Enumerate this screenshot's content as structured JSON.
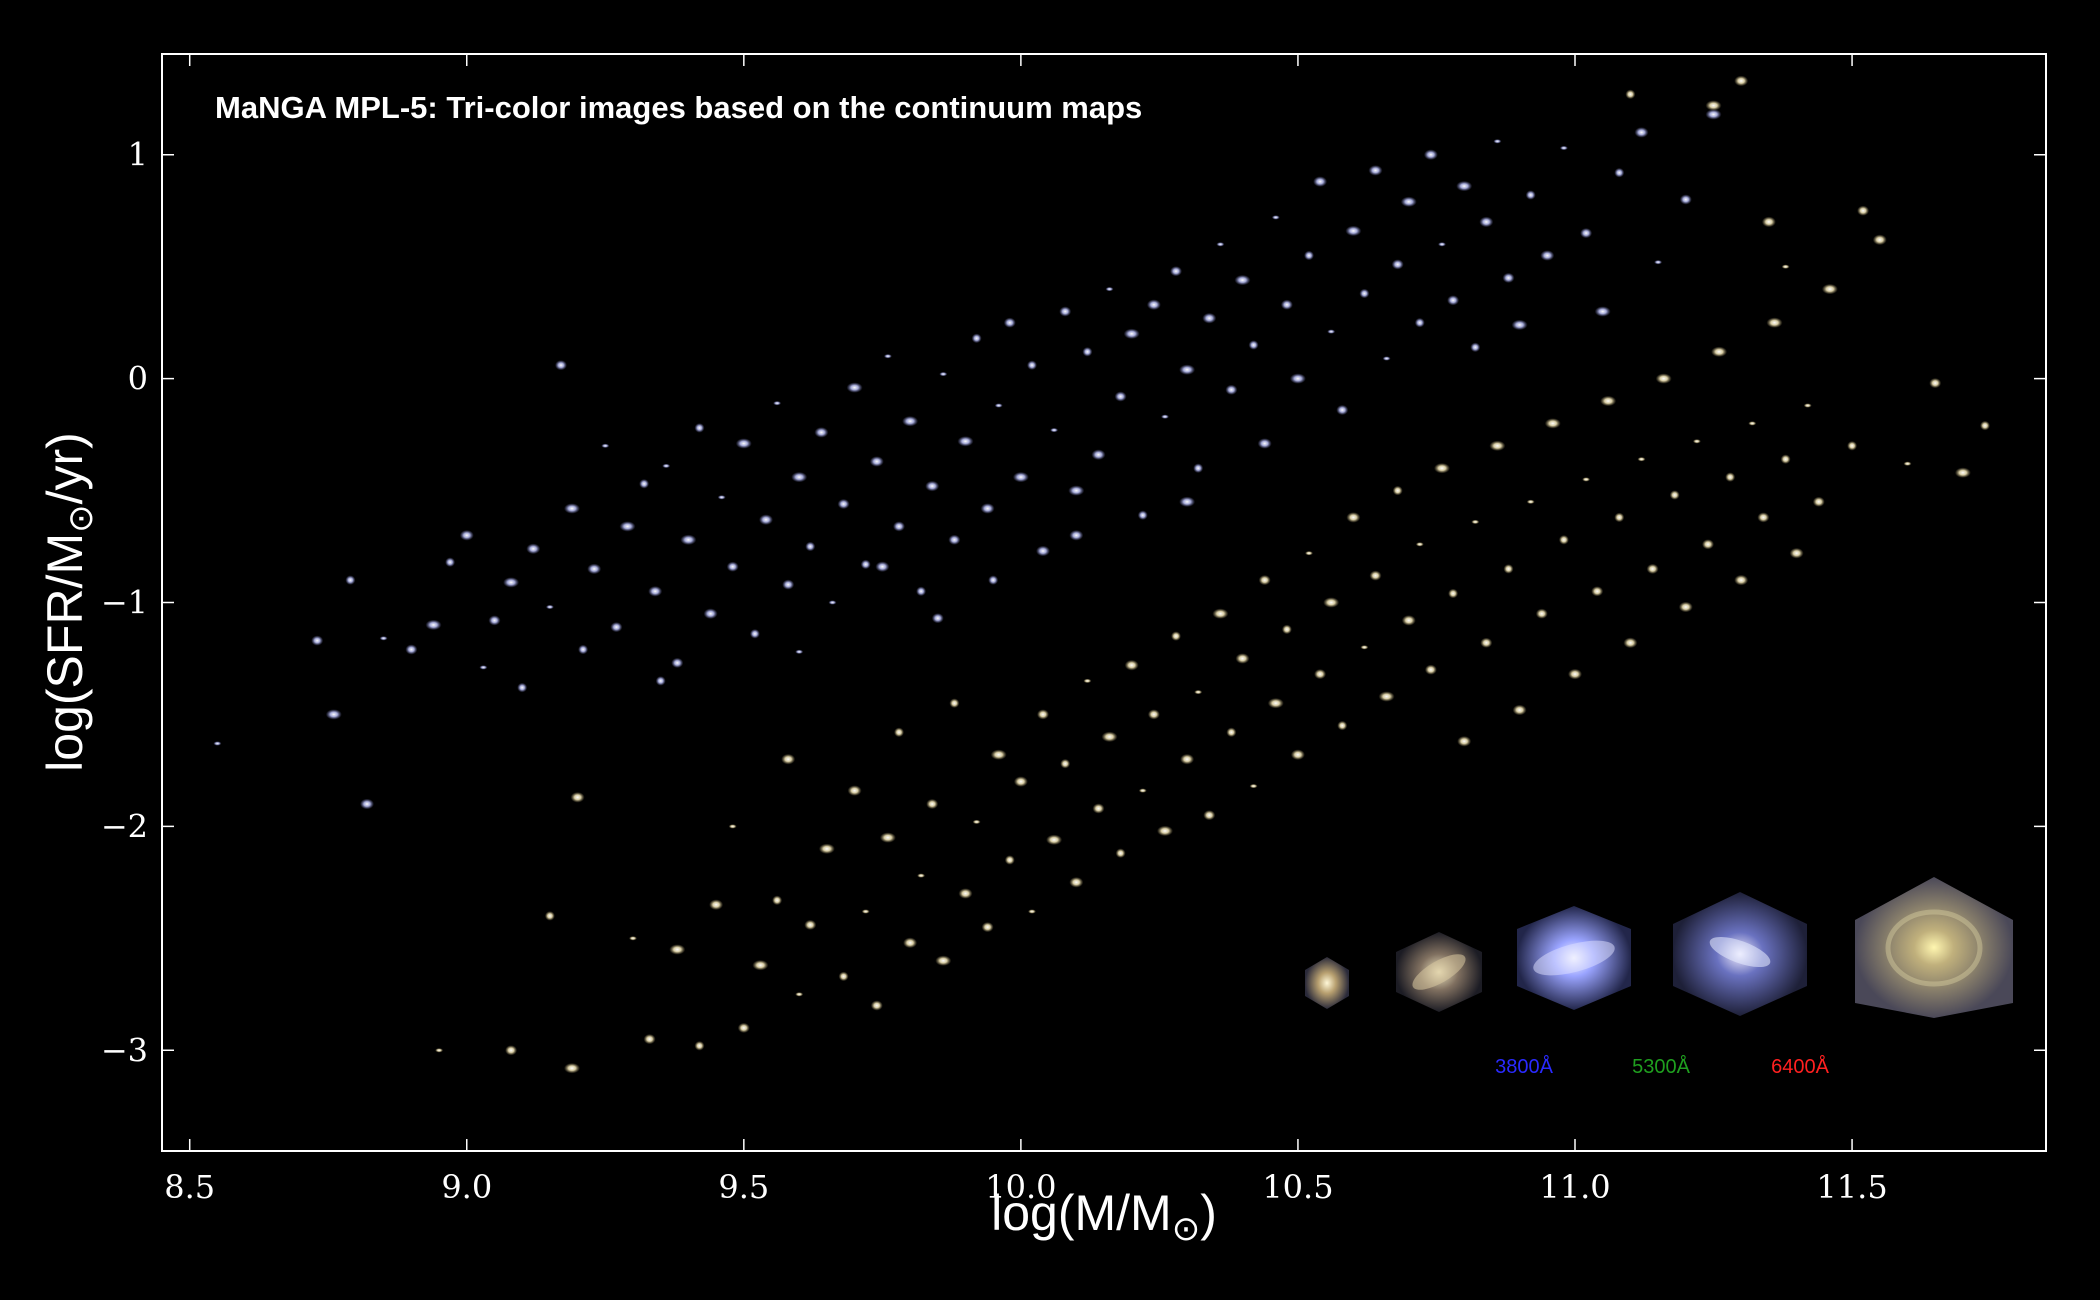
{
  "chart_data": {
    "type": "scatter",
    "title": "MaNGA MPL-5: Tri-color images based on the continuum maps",
    "xlabel_main": "log(M/M",
    "xlabel_sun": "⊙",
    "xlabel_end": ")",
    "ylabel_main": "log(SFR/M",
    "ylabel_sun": "⊙",
    "ylabel_end": "/yr)",
    "xlim": [
      8.45,
      11.85
    ],
    "ylim": [
      -3.45,
      1.45
    ],
    "x_ticks": [
      8.5,
      9.0,
      9.5,
      10.0,
      10.5,
      11.0,
      11.5
    ],
    "x_tick_labels": [
      "8.5",
      "9.0",
      "9.5",
      "10.0",
      "10.5",
      "11.0",
      "11.5"
    ],
    "y_ticks": [
      1,
      0,
      -1,
      -2,
      -3
    ],
    "y_tick_labels": [
      "1",
      "0",
      "−1",
      "−2",
      "−3"
    ],
    "grid": false,
    "colors": {
      "background": "#000000",
      "axes": "#ffffff",
      "star_forming": "#aab0e0",
      "quiescent": "#e6dcae"
    },
    "series": [
      {
        "points": [
          [
            8.55,
            -1.63
          ],
          [
            8.73,
            -1.17
          ],
          [
            8.76,
            -1.5
          ],
          [
            8.79,
            -0.9
          ],
          [
            8.82,
            -1.9
          ],
          [
            8.85,
            -1.16
          ],
          [
            8.9,
            -1.21
          ],
          [
            8.94,
            -1.1
          ],
          [
            8.97,
            -0.82
          ],
          [
            9.0,
            -0.7
          ],
          [
            9.03,
            -1.29
          ],
          [
            9.05,
            -1.08
          ],
          [
            9.08,
            -0.91
          ],
          [
            9.1,
            -1.38
          ],
          [
            9.12,
            -0.76
          ],
          [
            9.15,
            -1.02
          ],
          [
            9.17,
            0.06
          ],
          [
            9.19,
            -0.58
          ],
          [
            9.21,
            -1.21
          ],
          [
            9.23,
            -0.85
          ],
          [
            9.25,
            -0.3
          ],
          [
            9.27,
            -1.11
          ],
          [
            9.29,
            -0.66
          ],
          [
            9.32,
            -0.47
          ],
          [
            9.34,
            -0.95
          ],
          [
            9.36,
            -0.39
          ],
          [
            9.38,
            -1.27
          ],
          [
            9.4,
            -0.72
          ],
          [
            9.42,
            -0.22
          ],
          [
            9.44,
            -1.05
          ],
          [
            9.46,
            -0.53
          ],
          [
            9.48,
            -0.84
          ],
          [
            9.5,
            -0.29
          ],
          [
            9.52,
            -1.14
          ],
          [
            9.54,
            -0.63
          ],
          [
            9.56,
            -0.11
          ],
          [
            9.58,
            -0.92
          ],
          [
            9.6,
            -0.44
          ],
          [
            9.62,
            -0.75
          ],
          [
            9.64,
            -0.24
          ],
          [
            9.66,
            -1.0
          ],
          [
            9.68,
            -0.56
          ],
          [
            9.7,
            -0.04
          ],
          [
            9.72,
            -0.83
          ],
          [
            9.74,
            -0.37
          ],
          [
            9.76,
            0.1
          ],
          [
            9.78,
            -0.66
          ],
          [
            9.8,
            -0.19
          ],
          [
            9.82,
            -0.95
          ],
          [
            9.84,
            -0.48
          ],
          [
            9.86,
            0.02
          ],
          [
            9.88,
            -0.72
          ],
          [
            9.9,
            -0.28
          ],
          [
            9.92,
            0.18
          ],
          [
            9.94,
            -0.58
          ],
          [
            9.96,
            -0.12
          ],
          [
            9.98,
            0.25
          ],
          [
            10.0,
            -0.44
          ],
          [
            10.02,
            0.06
          ],
          [
            10.04,
            -0.77
          ],
          [
            10.06,
            -0.23
          ],
          [
            10.08,
            0.3
          ],
          [
            10.1,
            -0.5
          ],
          [
            10.12,
            0.12
          ],
          [
            10.14,
            -0.34
          ],
          [
            10.16,
            0.4
          ],
          [
            10.18,
            -0.08
          ],
          [
            10.2,
            0.2
          ],
          [
            10.22,
            -0.61
          ],
          [
            10.24,
            0.33
          ],
          [
            10.26,
            -0.17
          ],
          [
            10.28,
            0.48
          ],
          [
            10.3,
            0.04
          ],
          [
            10.32,
            -0.4
          ],
          [
            10.34,
            0.27
          ],
          [
            10.36,
            0.6
          ],
          [
            10.38,
            -0.05
          ],
          [
            10.4,
            0.44
          ],
          [
            10.42,
            0.15
          ],
          [
            10.44,
            -0.29
          ],
          [
            10.46,
            0.72
          ],
          [
            10.48,
            0.33
          ],
          [
            10.5,
            0.0
          ],
          [
            10.52,
            0.55
          ],
          [
            10.54,
            0.88
          ],
          [
            10.56,
            0.21
          ],
          [
            10.58,
            -0.14
          ],
          [
            10.6,
            0.66
          ],
          [
            10.62,
            0.38
          ],
          [
            10.64,
            0.93
          ],
          [
            10.66,
            0.09
          ],
          [
            10.68,
            0.51
          ],
          [
            10.7,
            0.79
          ],
          [
            10.72,
            0.25
          ],
          [
            10.74,
            1.0
          ],
          [
            10.76,
            0.6
          ],
          [
            10.78,
            0.35
          ],
          [
            10.8,
            0.86
          ],
          [
            10.82,
            0.14
          ],
          [
            10.84,
            0.7
          ],
          [
            10.86,
            1.06
          ],
          [
            10.88,
            0.45
          ],
          [
            10.9,
            0.24
          ],
          [
            10.92,
            0.82
          ],
          [
            10.95,
            0.55
          ],
          [
            10.98,
            1.03
          ],
          [
            11.02,
            0.65
          ],
          [
            11.05,
            0.3
          ],
          [
            11.08,
            0.92
          ],
          [
            11.12,
            1.1
          ],
          [
            11.15,
            0.52
          ],
          [
            11.2,
            0.8
          ],
          [
            11.25,
            1.18
          ],
          [
            9.95,
            -0.9
          ],
          [
            10.1,
            -0.7
          ],
          [
            9.6,
            -1.22
          ],
          [
            9.85,
            -1.07
          ],
          [
            10.3,
            -0.55
          ],
          [
            9.35,
            -1.35
          ],
          [
            9.75,
            -0.84
          ]
        ]
      },
      {
        "points": [
          [
            8.95,
            -3.0
          ],
          [
            9.08,
            -3.0
          ],
          [
            9.19,
            -3.08
          ],
          [
            9.15,
            -2.4
          ],
          [
            9.2,
            -1.87
          ],
          [
            9.3,
            -2.5
          ],
          [
            9.33,
            -2.95
          ],
          [
            9.38,
            -2.55
          ],
          [
            9.42,
            -2.98
          ],
          [
            9.45,
            -2.35
          ],
          [
            9.48,
            -2.0
          ],
          [
            9.5,
            -2.9
          ],
          [
            9.53,
            -2.62
          ],
          [
            9.56,
            -2.33
          ],
          [
            9.58,
            -1.7
          ],
          [
            9.6,
            -2.75
          ],
          [
            9.62,
            -2.44
          ],
          [
            9.65,
            -2.1
          ],
          [
            9.68,
            -2.67
          ],
          [
            9.7,
            -1.84
          ],
          [
            9.72,
            -2.38
          ],
          [
            9.74,
            -2.8
          ],
          [
            9.76,
            -2.05
          ],
          [
            9.78,
            -1.58
          ],
          [
            9.8,
            -2.52
          ],
          [
            9.82,
            -2.22
          ],
          [
            9.84,
            -1.9
          ],
          [
            9.86,
            -2.6
          ],
          [
            9.88,
            -1.45
          ],
          [
            9.9,
            -2.3
          ],
          [
            9.92,
            -1.98
          ],
          [
            9.94,
            -2.45
          ],
          [
            9.96,
            -1.68
          ],
          [
            9.98,
            -2.15
          ],
          [
            10.0,
            -1.8
          ],
          [
            10.02,
            -2.38
          ],
          [
            10.04,
            -1.5
          ],
          [
            10.06,
            -2.06
          ],
          [
            10.08,
            -1.72
          ],
          [
            10.1,
            -2.25
          ],
          [
            10.12,
            -1.35
          ],
          [
            10.14,
            -1.92
          ],
          [
            10.16,
            -1.6
          ],
          [
            10.18,
            -2.12
          ],
          [
            10.2,
            -1.28
          ],
          [
            10.22,
            -1.84
          ],
          [
            10.24,
            -1.5
          ],
          [
            10.26,
            -2.02
          ],
          [
            10.28,
            -1.15
          ],
          [
            10.3,
            -1.7
          ],
          [
            10.32,
            -1.4
          ],
          [
            10.34,
            -1.95
          ],
          [
            10.36,
            -1.05
          ],
          [
            10.38,
            -1.58
          ],
          [
            10.4,
            -1.25
          ],
          [
            10.42,
            -1.82
          ],
          [
            10.44,
            -0.9
          ],
          [
            10.46,
            -1.45
          ],
          [
            10.48,
            -1.12
          ],
          [
            10.5,
            -1.68
          ],
          [
            10.52,
            -0.78
          ],
          [
            10.54,
            -1.32
          ],
          [
            10.56,
            -1.0
          ],
          [
            10.58,
            -1.55
          ],
          [
            10.6,
            -0.62
          ],
          [
            10.62,
            -1.2
          ],
          [
            10.64,
            -0.88
          ],
          [
            10.66,
            -1.42
          ],
          [
            10.68,
            -0.5
          ],
          [
            10.7,
            -1.08
          ],
          [
            10.72,
            -0.74
          ],
          [
            10.74,
            -1.3
          ],
          [
            10.76,
            -0.4
          ],
          [
            10.78,
            -0.96
          ],
          [
            10.8,
            -1.62
          ],
          [
            10.82,
            -0.64
          ],
          [
            10.84,
            -1.18
          ],
          [
            10.86,
            -0.3
          ],
          [
            10.88,
            -0.85
          ],
          [
            10.9,
            -1.48
          ],
          [
            10.92,
            -0.55
          ],
          [
            10.94,
            -1.05
          ],
          [
            10.96,
            -0.2
          ],
          [
            10.98,
            -0.72
          ],
          [
            11.0,
            -1.32
          ],
          [
            11.02,
            -0.45
          ],
          [
            11.04,
            -0.95
          ],
          [
            11.06,
            -0.1
          ],
          [
            11.08,
            -0.62
          ],
          [
            11.1,
            -1.18
          ],
          [
            11.12,
            -0.36
          ],
          [
            11.14,
            -0.85
          ],
          [
            11.16,
            0.0
          ],
          [
            11.18,
            -0.52
          ],
          [
            11.2,
            -1.02
          ],
          [
            11.22,
            -0.28
          ],
          [
            11.24,
            -0.74
          ],
          [
            11.26,
            0.12
          ],
          [
            11.28,
            -0.44
          ],
          [
            11.3,
            -0.9
          ],
          [
            11.32,
            -0.2
          ],
          [
            11.34,
            -0.62
          ],
          [
            11.36,
            0.25
          ],
          [
            11.38,
            -0.36
          ],
          [
            11.4,
            -0.78
          ],
          [
            11.42,
            -0.12
          ],
          [
            11.44,
            -0.55
          ],
          [
            11.46,
            0.4
          ],
          [
            11.5,
            -0.3
          ],
          [
            11.55,
            0.62
          ],
          [
            11.6,
            -0.38
          ],
          [
            11.65,
            -0.02
          ],
          [
            11.7,
            -0.42
          ],
          [
            11.74,
            -0.21
          ],
          [
            11.35,
            0.7
          ],
          [
            11.38,
            0.5
          ],
          [
            11.52,
            0.75
          ],
          [
            11.25,
            1.22
          ],
          [
            11.1,
            1.27
          ],
          [
            11.3,
            1.33
          ]
        ]
      }
    ],
    "inset": {
      "band_labels": [
        "3800Å",
        "5300Å",
        "6400Å"
      ],
      "band_colors": [
        "#2a2aff",
        "#1f9f1f",
        "#ff2020"
      ]
    }
  }
}
